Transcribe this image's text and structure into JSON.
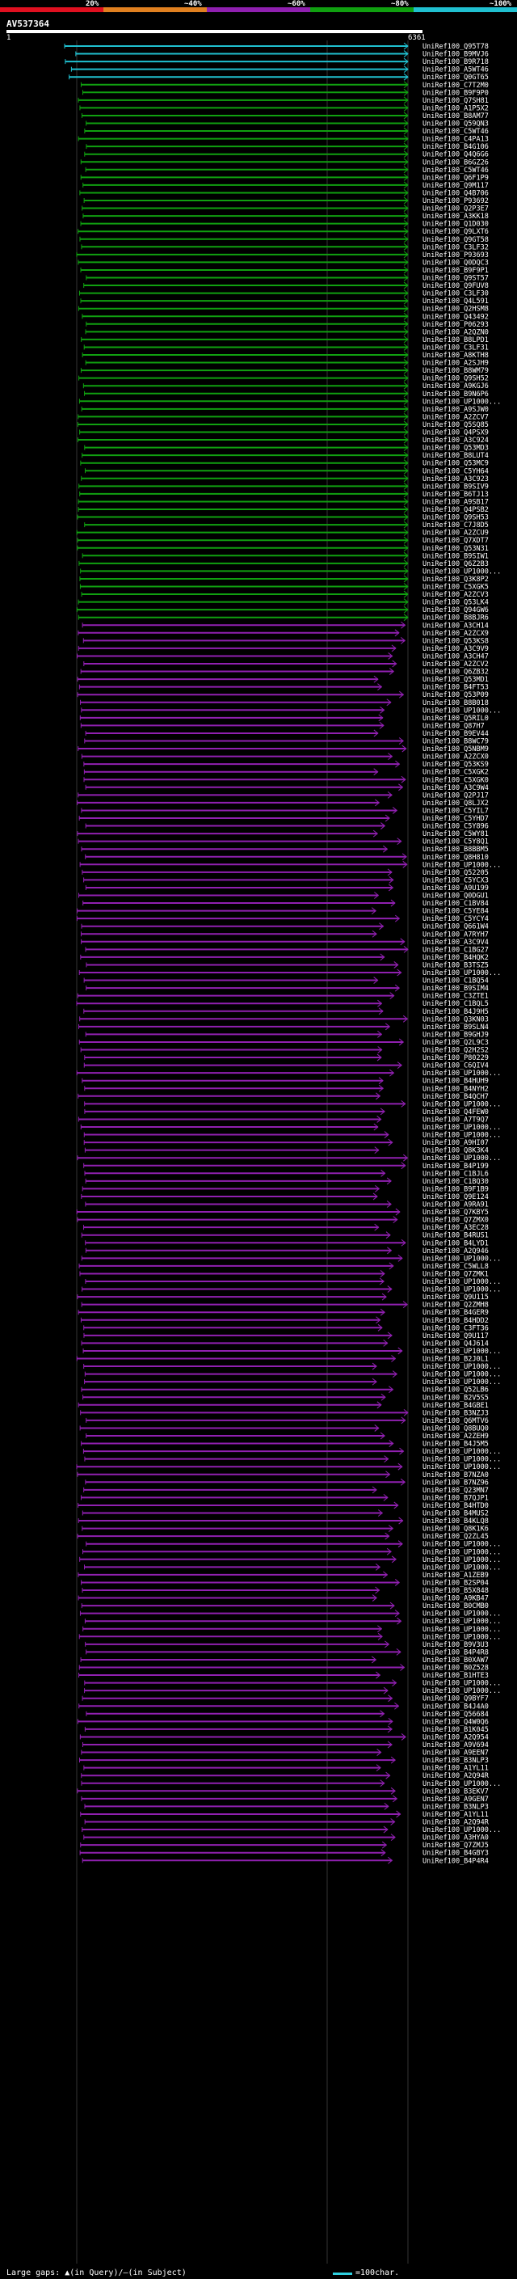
{
  "legend": {
    "segments": [
      {
        "label": "20%",
        "color": "#e01020"
      },
      {
        "label": "~40%",
        "color": "#e08020"
      },
      {
        "label": "~60%",
        "color": "#9020b0"
      },
      {
        "label": "~80%",
        "color": "#10a010"
      },
      {
        "label": "~100%",
        "color": "#20c0d0"
      }
    ]
  },
  "query": {
    "id": "AV537364",
    "start": "1",
    "end": "6361"
  },
  "hits": [
    "UniRef100_Q95T78",
    "UniRef100_B9MVJ6",
    "UniRef100_B9R718",
    "UniRef100_A5WT46",
    "UniRef100_Q0GT65",
    "UniRef100_C7T2M0",
    "UniRef100_B9F9P0",
    "UniRef100_Q7SH81",
    "UniRef100_A1P5X2",
    "UniRef100_B8AM77",
    "UniRef100_Q59QN3",
    "UniRef100_C5WT46",
    "UniRef100_C4PA13",
    "UniRef100_B4G106",
    "UniRef100_Q4Q6G6",
    "UniRef100_B6GZ26",
    "UniRef100_C5WT46",
    "UniRef100_Q6F1P9",
    "UniRef100_Q9M117",
    "UniRef100_Q4B706",
    "UniRef100_P93692",
    "UniRef100_Q2P3E7",
    "UniRef100_A3KK18",
    "UniRef100_Q1D030",
    "UniRef100_Q9LXT6",
    "UniRef100_Q9GT58",
    "UniRef100_C3LF32",
    "UniRef100_P93693",
    "UniRef100_Q0DQC3",
    "UniRef100_B9F9P1",
    "UniRef100_Q9ST57",
    "UniRef100_Q9FUV8",
    "UniRef100_C3LF30",
    "UniRef100_Q4L591",
    "UniRef100_Q2HSM8",
    "UniRef100_Q43492",
    "UniRef100_P06293",
    "UniRef100_A2QZN0",
    "UniRef100_B8LPD1",
    "UniRef100_C3LF31",
    "UniRef100_A8KTH8",
    "UniRef100_A2SJH9",
    "UniRef100_B8WM79",
    "UniRef100_Q9SH52",
    "UniRef100_A9KGJ6",
    "UniRef100_B9N6P6",
    "UniRef100_UP1000...",
    "UniRef100_A9SJW0",
    "UniRef100_A2ZCV7",
    "UniRef100_Q5SQ85",
    "UniRef100_Q4PSX9",
    "UniRef100_A3C924",
    "UniRef100_Q53MD3",
    "UniRef100_B8LUT4",
    "UniRef100_Q53MC9",
    "UniRef100_C5YH64",
    "UniRef100_A3C923",
    "UniRef100_B9SIV9",
    "UniRef100_B6TJ13",
    "UniRef100_A9SB17",
    "UniRef100_Q4PSB2",
    "UniRef100_Q9SH53",
    "UniRef100_C7J8D5",
    "UniRef100_A2ZCU9",
    "UniRef100_Q7XDT7",
    "UniRef100_Q53N31",
    "UniRef100_B9SIW1",
    "UniRef100_Q6Z2B3",
    "UniRef100_UP1000...",
    "UniRef100_Q3K8P2",
    "UniRef100_C5XGK5",
    "UniRef100_A2ZCV3",
    "UniRef100_Q53LK4",
    "UniRef100_Q94GW6",
    "UniRef100_B8BJR6",
    "UniRef100_A3CH14",
    "UniRef100_A2ZCX9",
    "UniRef100_Q53KS8",
    "UniRef100_A3C9V9",
    "UniRef100_A3CH47",
    "UniRef100_A2ZCV2",
    "UniRef100_Q6ZB32",
    "UniRef100_Q53MD1",
    "UniRef100_B4FT53",
    "UniRef100_Q53P09",
    "UniRef100_B8B018",
    "UniRef100_UP1000...",
    "UniRef100_Q5RIL0",
    "UniRef100_Q87H7",
    "UniRef100_B9EV44",
    "UniRef100_B8WC79",
    "UniRef100_Q5NBM9",
    "UniRef100_A2ZCX0",
    "UniRef100_Q53KS9",
    "UniRef100_C5XGK2",
    "UniRef100_C5XGK0",
    "UniRef100_A3C9W4",
    "UniRef100_Q2PJ17",
    "UniRef100_Q8LJX2",
    "UniRef100_C5YIL7",
    "UniRef100_C5YHD7",
    "UniRef100_C5Y896",
    "UniRef100_C5WY81",
    "UniRef100_C5Y8Q1",
    "UniRef100_B8BBM5",
    "UniRef100_Q8H810",
    "UniRef100_UP1000...",
    "UniRef100_Q52205",
    "UniRef100_C5YCX3",
    "UniRef100_A9U199",
    "UniRef100_Q0DGU1",
    "UniRef100_C1BV84",
    "UniRef100_C5YE84",
    "UniRef100_C5YCY4",
    "UniRef100_Q661W4",
    "UniRef100_A7RYH7",
    "UniRef100_A3C9V4",
    "UniRef100_C1BG27",
    "UniRef100_B4HQK2",
    "UniRef100_B3TSZ5",
    "UniRef100_UP1000...",
    "UniRef100_C1BQ54",
    "UniRef100_B9SIM4",
    "UniRef100_C3ZTE1",
    "UniRef100_C1BQL5",
    "UniRef100_B4J9H5",
    "UniRef100_Q3KN03",
    "UniRef100_B9SLN4",
    "UniRef100_B9GHJ9",
    "UniRef100_Q2L9C3",
    "UniRef100_Q2H2S2",
    "UniRef100_P80229",
    "UniRef100_C6QIV4",
    "UniRef100_UP1000...",
    "UniRef100_B4HUH9",
    "UniRef100_B4NYH2",
    "UniRef100_B4QCH7",
    "UniRef100_UP1000...",
    "UniRef100_Q4FEW0",
    "UniRef100_A7T9Q7",
    "UniRef100_UP1000...",
    "UniRef100_UP1000...",
    "UniRef100_A9HI07",
    "UniRef100_Q8K3K4",
    "UniRef100_UP1000...",
    "UniRef100_B4P199",
    "UniRef100_C1BJL6",
    "UniRef100_C1BQ30",
    "UniRef100_B9F1B9",
    "UniRef100_Q9E124",
    "UniRef100_A9RA91",
    "UniRef100_Q7KBY5",
    "UniRef100_Q7ZMX0",
    "UniRef100_A3EC28",
    "UniRef100_B4RUS1",
    "UniRef100_B4LYD1",
    "UniRef100_A2Q946",
    "UniRef100_UP1000...",
    "UniRef100_C5WLL8",
    "UniRef100_Q7ZMK1",
    "UniRef100_UP1000...",
    "UniRef100_UP1000...",
    "UniRef100_Q9U115",
    "UniRef100_Q2ZMH8",
    "UniRef100_B4GER9",
    "UniRef100_B4HDD2",
    "UniRef100_C3FT36",
    "UniRef100_Q9U117",
    "UniRef100_Q4J614",
    "UniRef100_UP1000...",
    "UniRef100_B2J0L1",
    "UniRef100_UP1000...",
    "UniRef100_UP1000...",
    "UniRef100_UP1000...",
    "UniRef100_Q52LB6",
    "UniRef100_B2V5S5",
    "UniRef100_B4GBE1",
    "UniRef100_B3NZJ3",
    "UniRef100_Q6MTV6",
    "UniRef100_Q8BUQ0",
    "UniRef100_A2ZEH9",
    "UniRef100_B4J5M5",
    "UniRef100_UP1000...",
    "UniRef100_UP1000...",
    "UniRef100_UP1000...",
    "UniRef100_B7NZA0",
    "UniRef100_B7NZ96",
    "UniRef100_Q23MN7",
    "UniRef100_B7QJP1",
    "UniRef100_B4HTD0",
    "UniRef100_B4MUS2",
    "UniRef100_B4KLQ8",
    "UniRef100_Q8K1K6",
    "UniRef100_Q2ZL45",
    "UniRef100_UP1000...",
    "UniRef100_UP1000...",
    "UniRef100_UP1000...",
    "UniRef100_UP1000...",
    "UniRef100_A1ZEB9",
    "UniRef100_B2SP04",
    "UniRef100_B5X848",
    "UniRef100_A9KB47",
    "UniRef100_B0CMB0",
    "UniRef100_UP1000...",
    "UniRef100_UP1000...",
    "UniRef100_UP1000...",
    "UniRef100_UP1000...",
    "UniRef100_B9V3U3",
    "UniRef100_B4P4R8",
    "UniRef100_B0XAW7",
    "UniRef100_B0Z528",
    "UniRef100_B1HTE3",
    "UniRef100_UP1000...",
    "UniRef100_UP1000...",
    "UniRef100_Q9BYF7",
    "UniRef100_B4J4A0",
    "UniRef100_Q56684",
    "UniRef100_Q4W0Q6",
    "UniRef100_B1K045",
    "UniRef100_A2Q954",
    "UniRef100_A9V694",
    "UniRef100_A9EEN7",
    "UniRef100_B3NLP3",
    "UniRef100_A1YL11",
    "UniRef100_A2Q94R",
    "UniRef100_UP1000...",
    "UniRef100_B3EKV7",
    "UniRef100_A9GEN7",
    "UniRef100_B3NLP3",
    "UniRef100_A1YL11",
    "UniRef100_A2Q94R",
    "UniRef100_UP1000...",
    "UniRef100_A3HYA0",
    "UniRef100_Q7ZMJ5",
    "UniRef100_B4GBY3",
    "UniRef100_B4P4R4"
  ],
  "footer": {
    "left": "Large gaps: ▲(in Query)/—(in Subject)",
    "right": "=100char."
  }
}
